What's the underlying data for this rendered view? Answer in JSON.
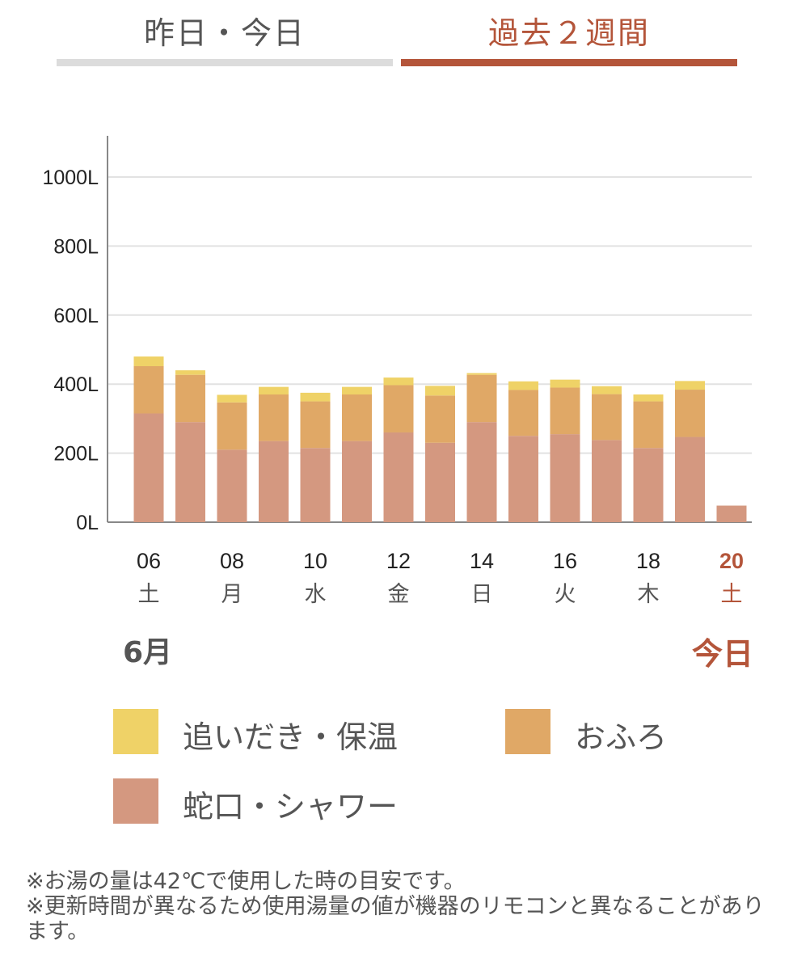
{
  "tabs": [
    {
      "label": "昨日・今日",
      "selected": false
    },
    {
      "label": "過去２週間",
      "selected": true
    }
  ],
  "colors": {
    "accent": "#b4553a",
    "reheat": "#efd267",
    "bath": "#e0a866",
    "tap": "#d49880",
    "grid": "#e2e2e2",
    "axis": "#888888"
  },
  "month_label": "6月",
  "today_label": "今日",
  "legend": [
    {
      "label": "追いだき・保温",
      "color": "#efd267"
    },
    {
      "label": "おふろ",
      "color": "#e0a866"
    },
    {
      "label": "蛇口・シャワー",
      "color": "#d49880"
    }
  ],
  "notes": [
    "※お湯の量は42℃で使用した時の目安です。",
    "※更新時間が異なるため使用湯量の値が機器のリモコンと異なることがあります。"
  ],
  "chart_data": {
    "type": "bar",
    "stacked": true,
    "y_ticks": [
      {
        "value": 0,
        "label": "0L"
      },
      {
        "value": 200,
        "label": "200L"
      },
      {
        "value": 400,
        "label": "400L"
      },
      {
        "value": 600,
        "label": "600L"
      },
      {
        "value": 800,
        "label": "800L"
      },
      {
        "value": 1000,
        "label": "1000L"
      }
    ],
    "ylim": [
      0,
      1120
    ],
    "grid": true,
    "categories": [
      "06",
      "07",
      "08",
      "09",
      "10",
      "11",
      "12",
      "13",
      "14",
      "15",
      "16",
      "17",
      "18",
      "19",
      "20"
    ],
    "x_labels": [
      {
        "index": 0,
        "day": "06",
        "weekday": "土"
      },
      {
        "index": 2,
        "day": "08",
        "weekday": "月"
      },
      {
        "index": 4,
        "day": "10",
        "weekday": "水"
      },
      {
        "index": 6,
        "day": "12",
        "weekday": "金"
      },
      {
        "index": 8,
        "day": "14",
        "weekday": "日"
      },
      {
        "index": 10,
        "day": "16",
        "weekday": "火"
      },
      {
        "index": 12,
        "day": "18",
        "weekday": "木"
      },
      {
        "index": 14,
        "day": "20",
        "weekday": "土",
        "highlight": true
      }
    ],
    "series": [
      {
        "name": "蛇口・シャワー",
        "color": "#d49880",
        "values": [
          315,
          290,
          210,
          235,
          215,
          235,
          260,
          230,
          290,
          250,
          255,
          238,
          215,
          247,
          48
        ]
      },
      {
        "name": "おふろ",
        "color": "#e0a866",
        "values": [
          137,
          137,
          137,
          135,
          135,
          135,
          137,
          137,
          137,
          133,
          135,
          133,
          135,
          137,
          0
        ]
      },
      {
        "name": "追いだき・保温",
        "color": "#efd267",
        "values": [
          28,
          13,
          22,
          22,
          25,
          22,
          22,
          28,
          5,
          25,
          23,
          23,
          20,
          25,
          0
        ]
      }
    ]
  }
}
